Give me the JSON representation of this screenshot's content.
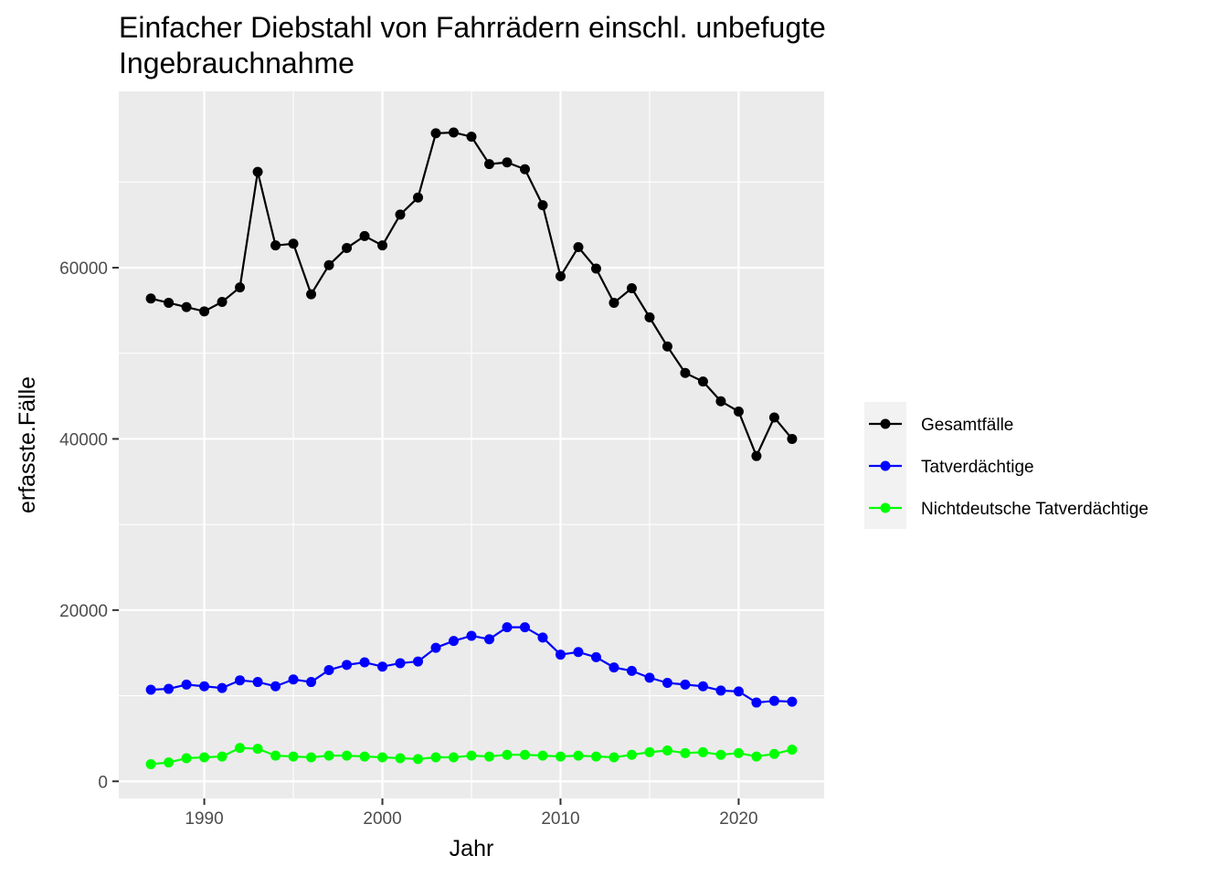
{
  "chart_data": {
    "type": "line",
    "title": "Einfacher Diebstahl von Fahrrädern einschl. unbefugte\nIngebrauchnahme",
    "xlabel": "Jahr",
    "ylabel": "erfasste.Fälle",
    "x": [
      1987,
      1988,
      1989,
      1990,
      1991,
      1992,
      1993,
      1994,
      1995,
      1996,
      1997,
      1998,
      1999,
      2000,
      2001,
      2002,
      2003,
      2004,
      2005,
      2006,
      2007,
      2008,
      2009,
      2010,
      2011,
      2012,
      2013,
      2014,
      2015,
      2016,
      2017,
      2018,
      2019,
      2020,
      2021,
      2022,
      2023
    ],
    "xlim": [
      1985.2,
      2024.8
    ],
    "ylim": [
      -2000,
      80600
    ],
    "x_ticks": [
      1990,
      2000,
      2010,
      2020
    ],
    "y_ticks": [
      0,
      20000,
      40000,
      60000
    ],
    "grid": true,
    "background": "#ebebeb",
    "legend_position": "right",
    "series": [
      {
        "name": "Gesamtfälle",
        "color": "#000000",
        "values": [
          56400,
          55900,
          55400,
          54900,
          56000,
          57700,
          71200,
          62600,
          62800,
          56900,
          60300,
          62300,
          63700,
          62600,
          66200,
          68200,
          75700,
          75800,
          75300,
          72100,
          72300,
          71500,
          67300,
          59000,
          62400,
          59900,
          55900,
          57600,
          54200,
          50800,
          47700,
          46700,
          44400,
          43200,
          38000,
          42500,
          40000
        ]
      },
      {
        "name": "Tatverdächtige",
        "color": "#0000ff",
        "values": [
          10700,
          10800,
          11300,
          11100,
          10900,
          11800,
          11600,
          11100,
          11900,
          11600,
          13000,
          13600,
          13900,
          13400,
          13800,
          14000,
          15600,
          16400,
          17000,
          16600,
          18000,
          18000,
          16800,
          14800,
          15100,
          14500,
          13300,
          12900,
          12100,
          11500,
          11300,
          11100,
          10600,
          10500,
          9200,
          9400,
          9300
        ]
      },
      {
        "name": "Nichtdeutsche Tatverdächtige",
        "color": "#00ff00",
        "values": [
          2000,
          2200,
          2700,
          2800,
          2900,
          3900,
          3800,
          3000,
          2900,
          2800,
          3000,
          3000,
          2900,
          2800,
          2700,
          2600,
          2800,
          2800,
          3000,
          2900,
          3100,
          3100,
          3000,
          2900,
          3000,
          2900,
          2800,
          3100,
          3400,
          3600,
          3300,
          3400,
          3100,
          3300,
          2900,
          3200,
          3700
        ]
      }
    ]
  }
}
